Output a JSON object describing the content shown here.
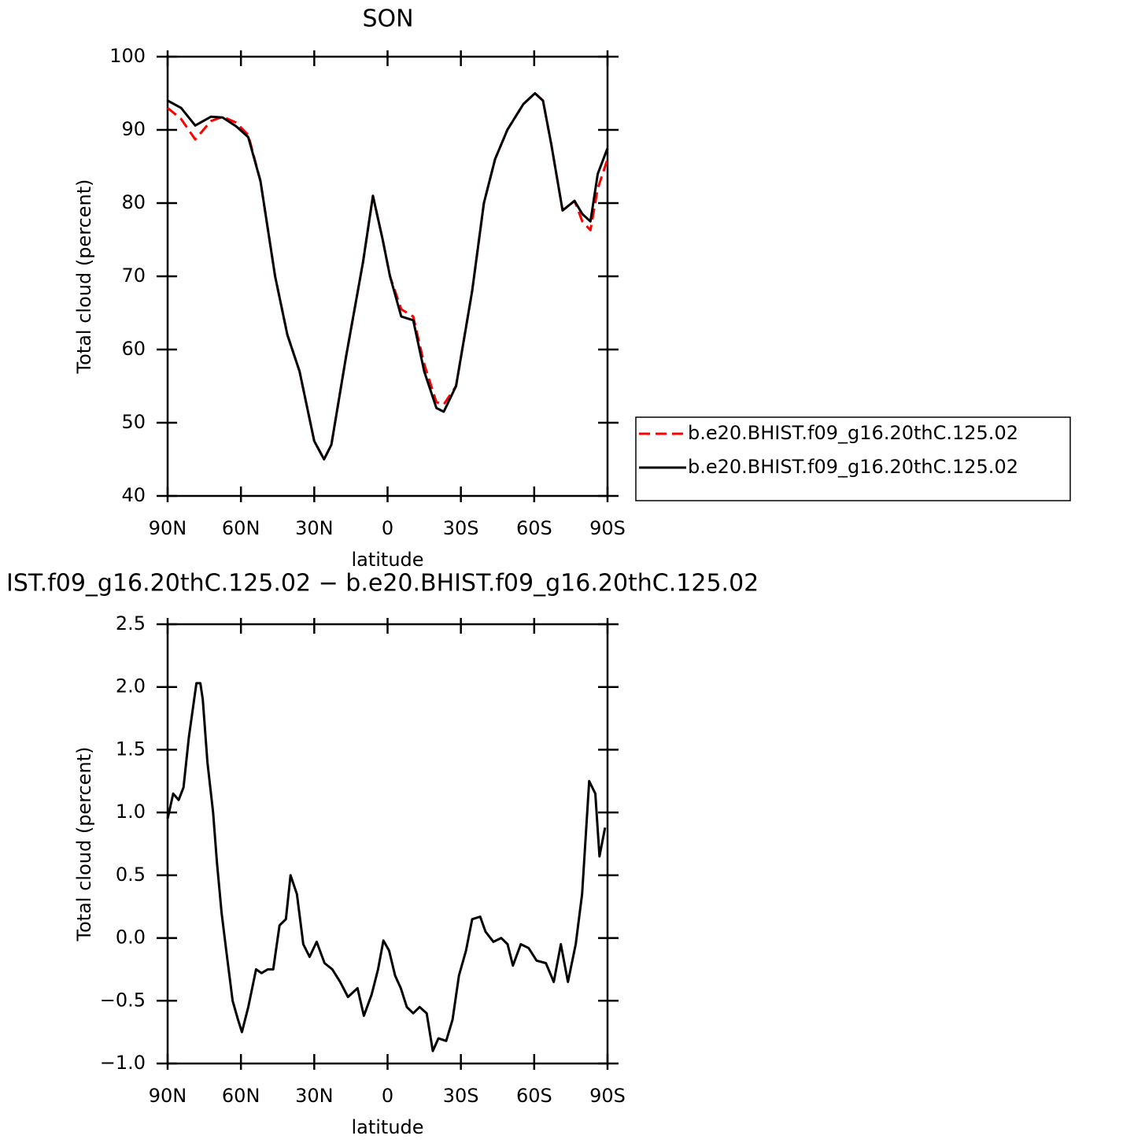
{
  "chart_data": [
    {
      "type": "line",
      "title": "SON",
      "x_label": "latitude",
      "y_label": "Total cloud (percent)",
      "x": [
        90,
        84.5,
        78.7,
        72.3,
        67.5,
        62,
        57,
        52,
        46,
        41,
        36,
        30,
        26,
        23,
        17,
        10,
        6,
        2,
        -1,
        -5.6,
        -10.5,
        -15,
        -20,
        -23,
        -28,
        -34.6,
        -39.4,
        -44,
        -49,
        -55.5,
        -60.3,
        -63.6,
        -67,
        -71.6,
        -76.5,
        -79.7,
        -83,
        -86,
        -90
      ],
      "series": [
        {
          "name": "b.e20.BHIST.f09_g16.20thC.125.02",
          "color": "#ff0000",
          "dash": true,
          "values": [
            93,
            91.5,
            88.7,
            91.2,
            91.8,
            91,
            89.3,
            83,
            70,
            62,
            57,
            47.5,
            45,
            47,
            59,
            72,
            81,
            75,
            70,
            65.5,
            64.5,
            58,
            52.8,
            52.5,
            55,
            68,
            80,
            86,
            90,
            93.5,
            95,
            94,
            88,
            79,
            80.3,
            77.5,
            76.3,
            82,
            86
          ]
        },
        {
          "name": "b.e20.BHIST.f09_g16.20thC.125.02",
          "color": "#000000",
          "dash": false,
          "values": [
            94,
            93,
            90.6,
            91.8,
            91.7,
            90.5,
            89,
            83,
            70,
            62,
            57,
            47.5,
            45,
            47,
            59,
            72,
            81,
            75,
            70,
            64.5,
            64,
            57,
            52,
            51.5,
            55,
            68,
            80,
            86,
            90,
            93.5,
            95,
            94,
            88,
            79,
            80.3,
            78.5,
            77.5,
            84,
            87.5
          ]
        }
      ],
      "xlim": [
        90,
        -90
      ],
      "xticks": [
        {
          "value": 90,
          "label": "90N"
        },
        {
          "value": 60,
          "label": "60N"
        },
        {
          "value": 30,
          "label": "30N"
        },
        0,
        {
          "value": -30,
          "label": "30S"
        },
        {
          "value": -60,
          "label": "60S"
        },
        {
          "value": -90,
          "label": "90S"
        }
      ],
      "ylim": [
        40,
        100
      ],
      "yticks": [
        40,
        50,
        60,
        70,
        80,
        90,
        100
      ]
    },
    {
      "type": "line",
      "title": "IST.f09_g16.20thC.125.02 − b.e20.BHIST.f09_g16.20thC.125.02",
      "x_label": "latitude",
      "y_label": "Total cloud (percent)",
      "x": [
        90,
        87.7,
        85.5,
        83.5,
        81.3,
        78.2,
        76.6,
        75.6,
        73.7,
        71.4,
        69.8,
        67.9,
        66,
        63.4,
        61.2,
        59.6,
        57,
        53.8,
        51.6,
        49,
        46.8,
        44.2,
        41.6,
        39.7,
        37.1,
        34.5,
        31.9,
        29,
        25.8,
        22.6,
        19.4,
        16.2,
        12.3,
        9.7,
        6.5,
        3.9,
        1.7,
        -0.6,
        -3.1,
        -5.4,
        -7.9,
        -10.5,
        -13.1,
        -16,
        -18.5,
        -20.8,
        -24,
        -26.6,
        -29.2,
        -32.1,
        -34.6,
        -37.9,
        -40.1,
        -43.3,
        -46.5,
        -49.1,
        -51.3,
        -54.5,
        -57.7,
        -61,
        -64.8,
        -68,
        -70.9,
        -73.8,
        -77,
        -79.6,
        -82.5,
        -85,
        -86.7,
        -89
      ],
      "values": [
        0.95,
        1.15,
        1.1,
        1.2,
        1.6,
        2.03,
        2.03,
        1.9,
        1.4,
        1.0,
        0.6,
        0.2,
        -0.1,
        -0.5,
        -0.65,
        -0.75,
        -0.55,
        -0.25,
        -0.28,
        -0.25,
        -0.25,
        0.1,
        0.15,
        0.5,
        0.35,
        -0.05,
        -0.15,
        -0.03,
        -0.2,
        -0.25,
        -0.35,
        -0.47,
        -0.4,
        -0.62,
        -0.45,
        -0.25,
        -0.02,
        -0.1,
        -0.3,
        -0.4,
        -0.55,
        -0.6,
        -0.55,
        -0.6,
        -0.9,
        -0.8,
        -0.82,
        -0.65,
        -0.3,
        -0.1,
        0.15,
        0.17,
        0.05,
        -0.03,
        0.0,
        -0.05,
        -0.22,
        -0.05,
        -0.08,
        -0.18,
        -0.2,
        -0.35,
        -0.05,
        -0.35,
        -0.05,
        0.35,
        1.25,
        1.15,
        0.65,
        0.88
      ],
      "color": "#000000",
      "xlim": [
        90,
        -90
      ],
      "xticks": [
        {
          "value": 90,
          "label": "90N"
        },
        {
          "value": 60,
          "label": "60N"
        },
        {
          "value": 30,
          "label": "30N"
        },
        0,
        {
          "value": -30,
          "label": "30S"
        },
        {
          "value": -60,
          "label": "60S"
        },
        {
          "value": -90,
          "label": "90S"
        }
      ],
      "ylim": [
        -1,
        2.5
      ],
      "yticks": [
        {
          "value": -1,
          "label": "−1.0"
        },
        {
          "value": -0.5,
          "label": "−0.5"
        },
        {
          "value": 0,
          "label": "0.0"
        },
        0.5,
        {
          "value": 1,
          "label": "1.0"
        },
        1.5,
        {
          "value": 2,
          "label": "2.0"
        },
        2.5
      ]
    }
  ]
}
